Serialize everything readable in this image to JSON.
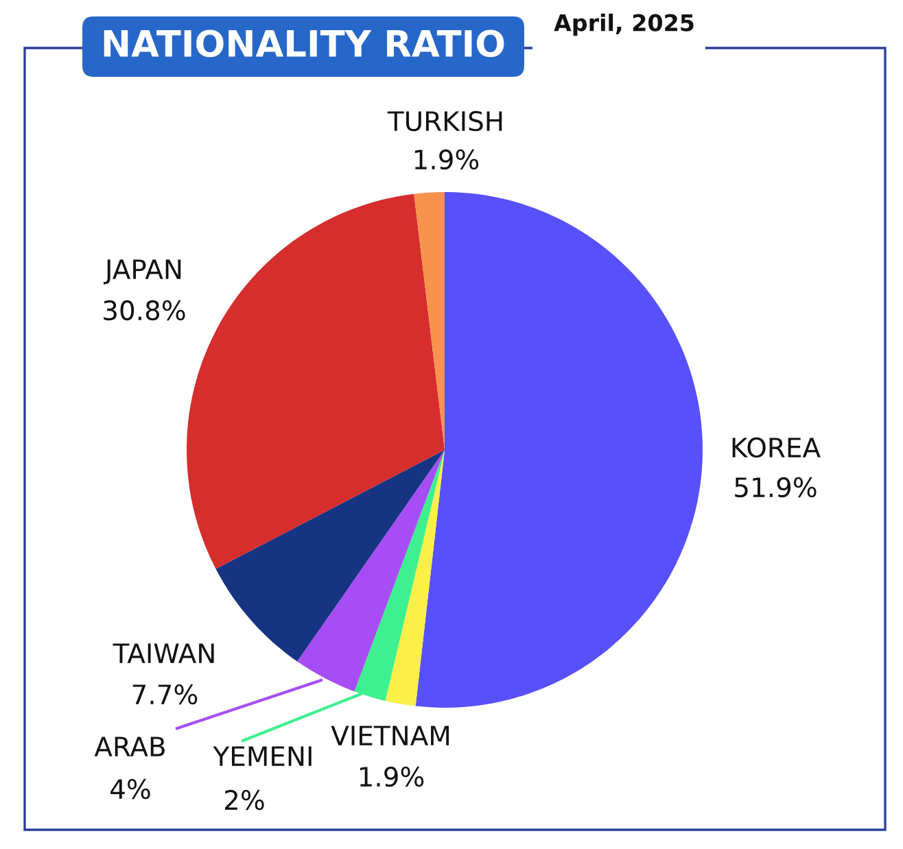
{
  "chart_data": {
    "type": "pie",
    "title": "NATIONALITY RATIO",
    "subtitle": "April, 2025",
    "categories": [
      "KOREA",
      "VIETNAM",
      "YEMENI",
      "ARAB",
      "TAIWAN",
      "JAPAN",
      "TURKISH"
    ],
    "values": [
      51.9,
      1.9,
      2,
      4,
      7.7,
      30.8,
      1.9
    ],
    "value_labels": [
      "51.9%",
      "1.9%",
      "2%",
      "4%",
      "7.7%",
      "30.8%",
      "1.9%"
    ],
    "colors": [
      "#5850fb",
      "#fbf04a",
      "#3ef08f",
      "#a64df5",
      "#163482",
      "#d62d2d",
      "#f7934c"
    ],
    "legend": false
  }
}
